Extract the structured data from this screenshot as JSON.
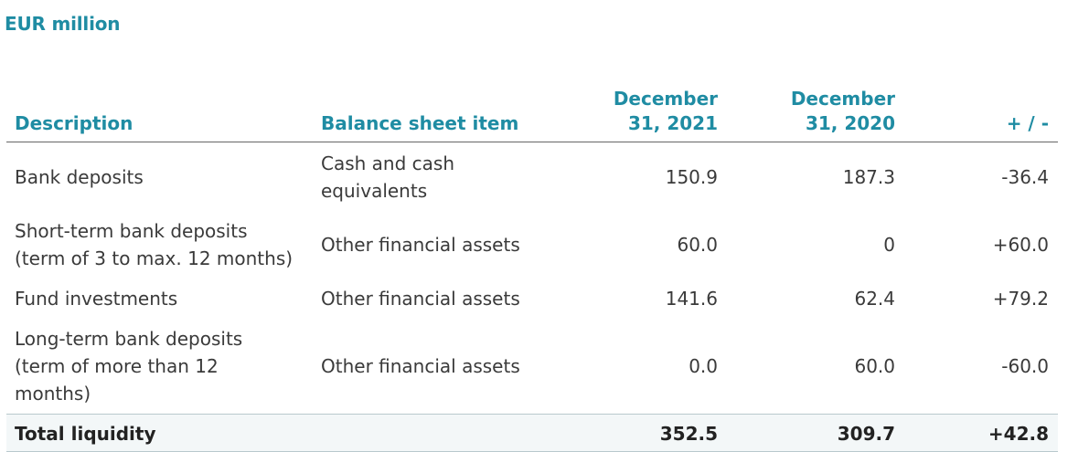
{
  "caption": "EUR million",
  "headers": {
    "description": "Description",
    "balance_sheet_item": "Balance sheet item",
    "dec_2021": "December 31, 2021",
    "dec_2020": "December 31, 2020",
    "change": "+ / -"
  },
  "rows": [
    {
      "description": "Bank deposits",
      "balance_sheet_item": "Cash and cash equivalents",
      "dec_2021": "150.9",
      "dec_2020": "187.3",
      "change": "-36.4"
    },
    {
      "description": "Short-term bank deposits (term of 3 to max. 12 months)",
      "balance_sheet_item": "Other financial assets",
      "dec_2021": "60.0",
      "dec_2020": "0",
      "change": "+60.0"
    },
    {
      "description": "Fund investments",
      "balance_sheet_item": "Other financial assets",
      "dec_2021": "141.6",
      "dec_2020": "62.4",
      "change": "+79.2"
    },
    {
      "description": "Long-term bank deposits (term of more than 12 months)",
      "balance_sheet_item": "Other financial assets",
      "dec_2021": "0.0",
      "dec_2020": "60.0",
      "change": "-60.0"
    }
  ],
  "total": {
    "description": "Total liquidity",
    "balance_sheet_item": "",
    "dec_2021": "352.5",
    "dec_2020": "309.7",
    "change": "+42.8"
  },
  "colors": {
    "accent": "#1f8ca3",
    "total_row_background": "#f3f7f8"
  }
}
